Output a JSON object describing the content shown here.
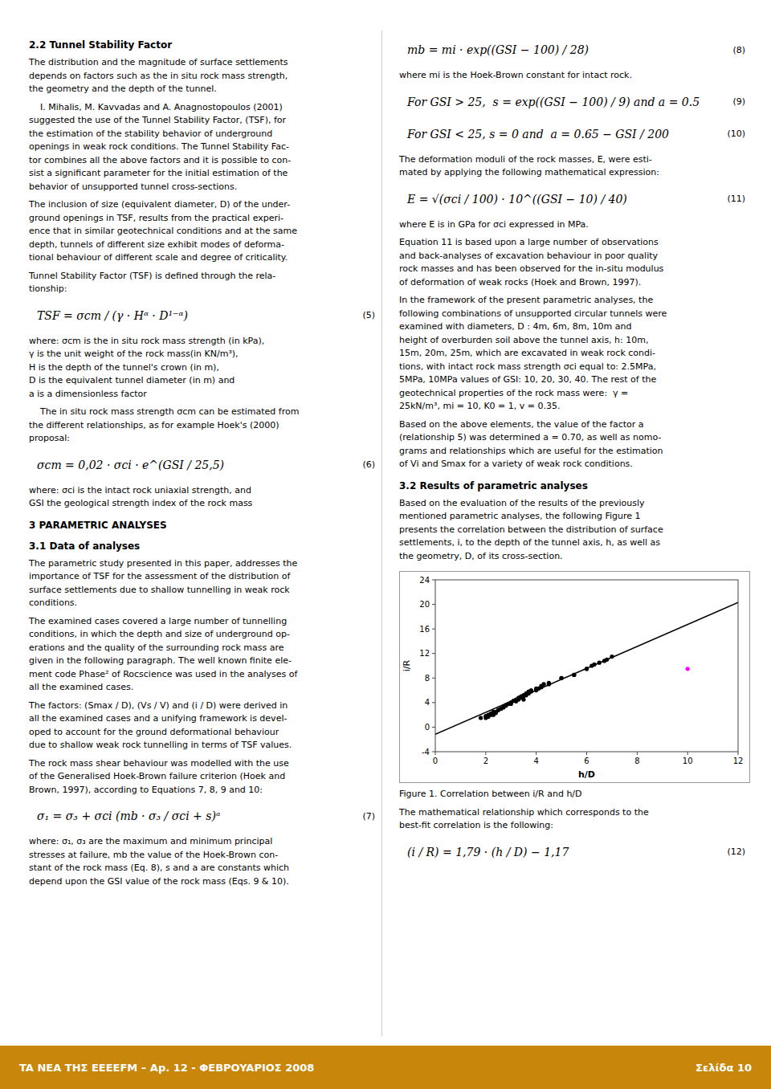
{
  "page": {
    "left": [
      {
        "heading": "2.2 Tunnel Stability Factor"
      },
      {
        "lines": [
          "The distribution and the magnitude of surface settlements",
          "depends on factors such as the in situ rock mass strength,",
          "the geometry and the depth of the tunnel."
        ]
      },
      {
        "lines": [
          "    I. Mihalis, M. Kavvadas and A. Anagnostopoulos (2001)",
          "suggested the use of the Tunnel Stability Factor, (TSF), for",
          "the estimation of the stability behavior of underground",
          "openings in weak rock conditions. The Tunnel Stability Fac-",
          "tor combines all the above factors and it is possible to con-",
          "sist a significant parameter for the initial estimation of the",
          "behavior of unsupported tunnel cross-sections."
        ]
      },
      {
        "lines": [
          "The inclusion of size (equivalent diameter, D) of the under-",
          "ground openings in TSF, results from the practical experi-",
          "ence that in similar geotechnical conditions and at the same",
          "depth, tunnels of different size exhibit modes of deforma-",
          "tional behaviour of different scale and degree of criticality."
        ]
      },
      {
        "lines": [
          "Tunnel Stability Factor (TSF) is defined through the rela-",
          "tionship:"
        ]
      },
      {
        "equation": "TSF = σcm / (γ · Hᵅ · D¹⁻ᵅ)",
        "number": "(5)"
      },
      {
        "lines": [
          "where: σcm is the in situ rock mass strength (in kPa),",
          "γ is the unit weight of the rock mass(in KN/m³),",
          "H is the depth of the tunnel's crown (in m),",
          "D is the equivalent tunnel diameter (in m) and",
          "a is a dimensionless factor"
        ]
      },
      {
        "lines": [
          "    The in situ rock mass strength σcm can be estimated from",
          "the different relationships, as for example Hoek's (2000)",
          "proposal:"
        ]
      },
      {
        "equation": "σcm = 0,02 · σci · e^(GSI / 25,5)",
        "number": "(6)"
      },
      {
        "lines": [
          "where: σci is the intact rock uniaxial strength, and",
          "GSI the geological strength index of the rock mass"
        ]
      },
      {
        "heading": "3  PARAMETRIC ANALYSES"
      },
      {
        "heading": "3.1  Data of analyses"
      },
      {
        "lines": [
          "The parametric study presented in this paper, addresses the",
          "importance of TSF for the assessment of the distribution of",
          "surface settlements due to shallow tunnelling in weak rock",
          "conditions."
        ]
      },
      {
        "lines": [
          "The examined cases covered a large number of tunnelling",
          "conditions, in which the depth and size of underground op-",
          "erations and the quality of the surrounding rock mass are",
          "given in the following paragraph. The well known finite ele-",
          "ment code Phase² of Rocscience was used in the analyses of",
          "all the examined cases."
        ]
      },
      {
        "lines": [
          "The factors: (Smax / D), (Vs / V) and (i / D) were derived in",
          "all the examined cases and a unifying framework is devel-",
          "oped to account for the ground deformational behaviour",
          "due to shallow weak rock tunnelling in terms of TSF values."
        ]
      },
      {
        "lines": [
          "The rock mass shear behaviour was modelled with the use",
          "of the Generalised Hoek-Brown failure criterion (Hoek and",
          "Brown, 1997), according to Equations 7, 8, 9 and 10:"
        ]
      },
      {
        "equation": "σ₁ = σ₃ + σci (mb · σ₃ / σci + s)ᵃ",
        "number": "(7)"
      },
      {
        "lines": [
          "where: σ₁, σ₃ are the maximum and minimum principal",
          "stresses at failure, mb the value of the Hoek-Brown con-",
          "stant of the rock mass (Eq. 8), s and a are constants which",
          "depend upon the GSI value of the rock mass (Eqs. 9 & 10)."
        ]
      }
    ],
    "right": [
      {
        "equation": "mb = mi · exp((GSI − 100) / 28)",
        "number": "(8)"
      },
      {
        "lines": [
          "where mi is the Hoek-Brown constant for intact rock."
        ]
      },
      {
        "equation": "For GSI > 25,  s = exp((GSI − 100) / 9) and a = 0.5",
        "number": "(9)"
      },
      {
        "equation": "For GSI < 25, s = 0 and  a = 0.65 − GSI / 200",
        "number": "(10)"
      },
      {
        "lines": [
          "The deformation moduli of the rock masses, E, were esti-",
          "mated by applying the following mathematical expression:"
        ]
      },
      {
        "equation": "E = √(σci / 100) · 10^((GSI − 10) / 40)",
        "number": "(11)"
      },
      {
        "lines": [
          "where E is in GPa for σci expressed in MPa."
        ]
      },
      {
        "lines": [
          "Equation 11 is based upon a large number of observations",
          "and back-analyses of excavation behaviour in poor quality",
          "rock masses and has been observed for the in-situ modulus",
          "of deformation of weak rocks (Hoek and Brown, 1997)."
        ]
      },
      {
        "lines": [
          "In the framework of the present parametric analyses, the",
          "following combinations of unsupported circular tunnels were",
          "examined with diameters, D : 4m, 6m, 8m, 10m and",
          "height of overburden soil above the tunnel axis, h: 10m,",
          "15m, 20m, 25m, which are excavated in weak rock condi-",
          "tions, with intact rock mass strength σci equal to: 2.5MPa,",
          "5MPa, 10MPa values of GSI: 10, 20, 30, 40. The rest of the",
          "geotechnical properties of the rock mass were:  γ =",
          "25kN/m³, mi = 10, K0 = 1, v = 0.35."
        ]
      },
      {
        "lines": [
          "Based on the above elements, the value of the factor a",
          "(relationship 5) was determined a = 0.70, as well as nomo-",
          "grams and relationships which are useful for the estimation",
          "of Vi and Smax for a variety of weak rock conditions."
        ]
      },
      {
        "heading": "3.2  Results of parametric analyses"
      },
      {
        "lines": [
          "Based on the evaluation of the results of the previously",
          "mentioned parametric analyses, the following Figure 1",
          "presents the correlation between the distribution of surface",
          "settlements, i, to the depth of the tunnel axis, h, as well as",
          "the geometry, D, of its cross-section."
        ]
      }
    ],
    "caption": "Figure 1. Correlation between i/R and h/D",
    "right_after": [
      {
        "lines": [
          "The mathematical relationship which corresponds to the",
          "best-fit correlation is the following:"
        ]
      },
      {
        "equation": "(i / R) = 1,79 · (h / D) − 1,17",
        "number": "(12)"
      }
    ],
    "footer_left": "TA NEA THΣ EEEEFM – Ap. 12 - ΦEBPOYAPIOΣ 2008",
    "footer_right": "Σελίδα 10",
    "footer_color": "#c8860a"
  },
  "chart_data": {
    "type": "scatter",
    "xlabel": "h/D",
    "ylabel": "i/R",
    "xlim": [
      0,
      12
    ],
    "ylim": [
      -4,
      24
    ],
    "xticks": [
      0,
      2,
      4,
      6,
      8,
      10,
      12
    ],
    "yticks": [
      -4,
      0,
      4,
      8,
      12,
      16,
      20,
      24
    ],
    "grid": false,
    "series": [
      {
        "color": "black",
        "marker": "dot",
        "x": [
          1.8,
          2.0,
          2.1,
          2.2,
          2.3,
          2.3,
          2.4,
          2.5,
          2.6,
          2.7,
          2.8,
          3.0,
          3.0,
          3.2,
          3.3,
          3.4,
          3.5,
          3.5,
          3.6,
          3.7,
          3.8,
          4.0,
          4.1,
          4.2,
          4.3,
          4.5,
          5.0,
          5.5,
          6.0,
          6.2,
          6.5,
          6.8,
          7.0
        ],
        "values": [
          1.5,
          1.8,
          2.0,
          2.2,
          2.0,
          2.5,
          2.3,
          2.8,
          3.0,
          3.2,
          3.5,
          3.8,
          4.0,
          4.2,
          4.5,
          4.8,
          4.5,
          5.0,
          5.2,
          5.5,
          5.8,
          6.0,
          6.3,
          6.5,
          7.0,
          7.2,
          8.0,
          8.5,
          9.5,
          10.0,
          10.5,
          11.0,
          11.5
        ]
      },
      {
        "color": "black",
        "marker": "dot",
        "x": [
          2.0,
          2.1,
          2.2,
          2.3,
          2.4,
          2.5,
          2.6,
          2.7,
          2.8,
          2.9,
          3.0,
          3.1,
          3.2,
          3.3,
          3.4,
          3.5,
          3.6,
          3.7,
          3.8,
          4.0,
          4.2,
          4.5,
          5.0,
          5.5,
          6.0,
          6.3,
          6.7
        ],
        "values": [
          1.5,
          1.7,
          2.0,
          2.2,
          2.5,
          2.8,
          3.0,
          3.3,
          3.6,
          3.8,
          4.0,
          4.3,
          4.5,
          4.8,
          5.0,
          5.2,
          5.5,
          5.8,
          6.0,
          6.3,
          6.7,
          7.0,
          8.0,
          8.5,
          9.5,
          10.2,
          10.8
        ]
      },
      {
        "color": "magenta",
        "marker": "dot",
        "x": [
          10.0
        ],
        "values": [
          9.5
        ]
      },
      {
        "type": "line",
        "color": "black",
        "line_style": "solid",
        "x": [
          0,
          12
        ],
        "values": [
          -1.17,
          20.31
        ]
      }
    ]
  }
}
